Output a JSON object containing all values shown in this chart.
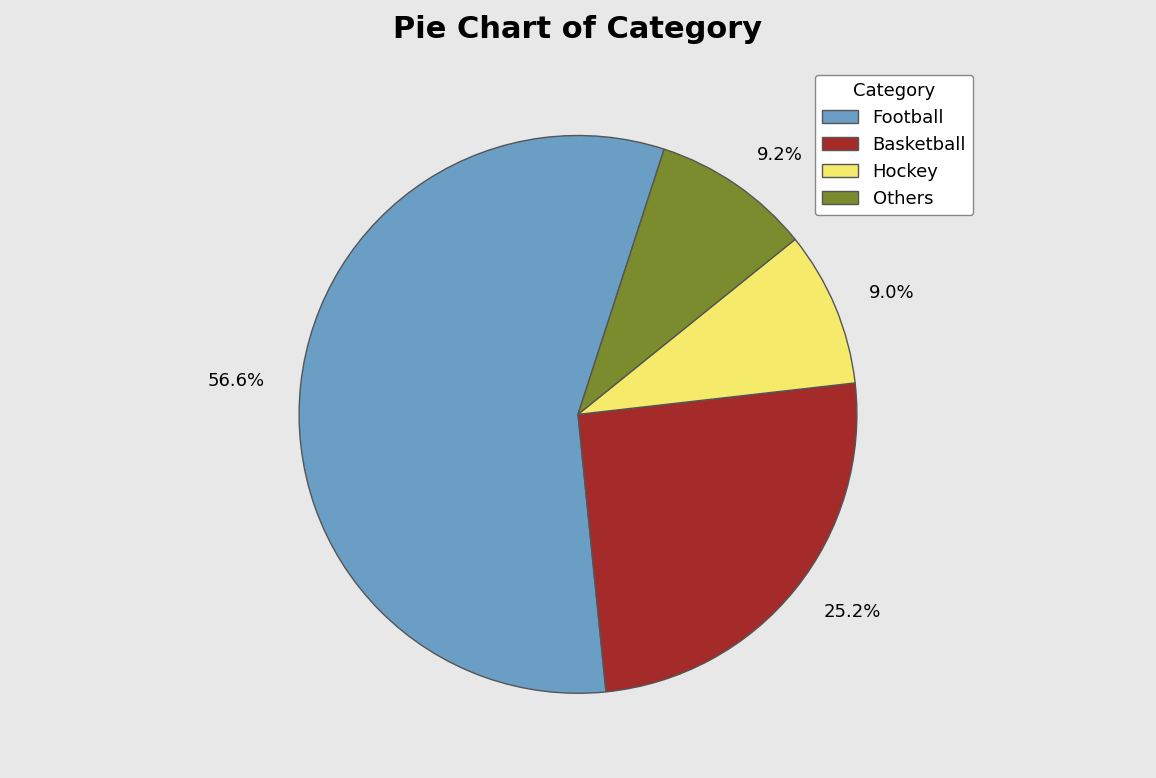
{
  "title": "Pie Chart of Category",
  "categories": [
    "Football",
    "Basketball",
    "Hockey",
    "Others"
  ],
  "values": [
    56.6,
    25.2,
    9.0,
    9.2
  ],
  "colors": [
    "#6A9EC5",
    "#A52A2A",
    "#F5EA6A",
    "#7A8C2E"
  ],
  "background_color": "#E8E8E8",
  "title_fontsize": 22,
  "legend_title": "Category",
  "pct_labels": [
    "56.6%",
    "25.2%",
    "9.0%",
    "9.2%"
  ],
  "startangle": 72,
  "label_distance": 1.13
}
